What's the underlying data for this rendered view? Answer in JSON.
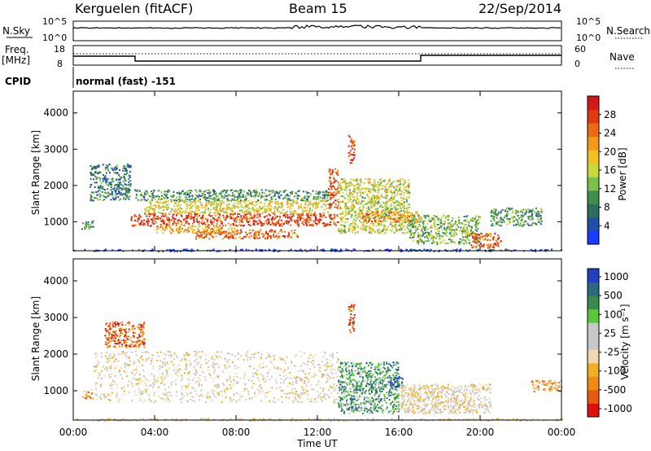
{
  "header": {
    "station": "Kerguelen (fitACF)",
    "beam": "Beam 15",
    "date": "22/Sep/2014"
  },
  "housekeeping": {
    "nsky_label": "N.Sky",
    "nsky_ticks": [
      "10^5",
      "10^0"
    ],
    "nsearch_label": "N.Search",
    "nsearch_ticks": [
      "10^5",
      "10^0"
    ],
    "freq_label_1": "Freq.",
    "freq_label_2": "[MHz]",
    "freq_ticks": [
      "18",
      "8"
    ],
    "nave_label": "Nave",
    "nave_ticks": [
      "60",
      "0"
    ],
    "cpid_label": "CPID",
    "cpid_value": "normal (fast) -151"
  },
  "colors": {
    "power_scale": [
      "#1a3cff",
      "#1f4fa8",
      "#2e6e5e",
      "#3f8f4a",
      "#7cc24a",
      "#c8d93a",
      "#f0c21e",
      "#f29a16",
      "#ee6a12",
      "#e23a10",
      "#d41818"
    ],
    "velocity_scale": [
      "#e01010",
      "#e85a10",
      "#f08a10",
      "#f2b020",
      "#f0d8b0",
      "#c8c8c8",
      "#c8c8c8",
      "#58c83a",
      "#3a8a50",
      "#2a6a80",
      "#2040c0"
    ]
  },
  "chart_data": [
    {
      "type": "heatmap",
      "name": "power",
      "ylabel": "Slant Range [km]",
      "ylim": [
        200,
        4600
      ],
      "yticks": [
        "1000",
        "2000",
        "3000",
        "4000"
      ],
      "xlim": [
        0,
        24
      ],
      "xticks": [
        "00:00",
        "04:00",
        "08:00",
        "12:00",
        "16:00",
        "20:00",
        "00:00"
      ],
      "colorbar": {
        "label": "Power [dB]",
        "range": [
          0,
          32
        ],
        "ticks": [
          "4",
          "8",
          "12",
          "16",
          "20",
          "24",
          "28"
        ]
      },
      "bands": [
        {
          "t0": 0.4,
          "t1": 1.0,
          "r0": 800,
          "r1": 1050,
          "level": 0.3
        },
        {
          "t0": 0.8,
          "t1": 2.8,
          "r0": 1600,
          "r1": 2600,
          "level": 0.25
        },
        {
          "t0": 2.8,
          "t1": 13.0,
          "r0": 900,
          "r1": 1250,
          "level": 0.85
        },
        {
          "t0": 3.5,
          "t1": 12.5,
          "r0": 1250,
          "r1": 1600,
          "level": 0.55
        },
        {
          "t0": 3.0,
          "t1": 12.5,
          "r0": 1600,
          "r1": 1900,
          "level": 0.3
        },
        {
          "t0": 6.0,
          "t1": 11.0,
          "r0": 550,
          "r1": 800,
          "level": 0.8
        },
        {
          "t0": 4.0,
          "t1": 8.0,
          "r0": 700,
          "r1": 900,
          "level": 0.65
        },
        {
          "t0": 12.5,
          "t1": 13.0,
          "r0": 1400,
          "r1": 2500,
          "level": 0.85
        },
        {
          "t0": 13.0,
          "t1": 16.5,
          "r0": 700,
          "r1": 2200,
          "level": 0.5
        },
        {
          "t0": 14.0,
          "t1": 17.0,
          "r0": 1000,
          "r1": 1300,
          "level": 0.7
        },
        {
          "t0": 16.5,
          "t1": 20.0,
          "r0": 400,
          "r1": 1200,
          "level": 0.4
        },
        {
          "t0": 19.5,
          "t1": 21.0,
          "r0": 300,
          "r1": 700,
          "level": 0.85
        },
        {
          "t0": 20.5,
          "t1": 23.0,
          "r0": 900,
          "r1": 1400,
          "level": 0.3
        },
        {
          "t0": 13.5,
          "t1": 13.8,
          "r0": 2600,
          "r1": 3400,
          "level": 0.85
        },
        {
          "t0": 0.0,
          "t1": 24.0,
          "r0": 200,
          "r1": 260,
          "level": 0.05
        }
      ]
    },
    {
      "type": "heatmap",
      "name": "velocity",
      "ylabel": "Slant Range [km]",
      "ylim": [
        200,
        4600
      ],
      "yticks": [
        "1000",
        "2000",
        "3000",
        "4000"
      ],
      "xlim": [
        0,
        24
      ],
      "xticks": [
        "00:00",
        "04:00",
        "08:00",
        "12:00",
        "16:00",
        "20:00",
        "00:00"
      ],
      "xlabel": "Time UT",
      "colorbar": {
        "label": "Velocity [m s⁻¹]",
        "ticks": [
          "1000",
          "500",
          "100",
          "25",
          "-25",
          "-100",
          "-500",
          "-1000"
        ]
      },
      "bands": [
        {
          "t0": 0.4,
          "t1": 1.0,
          "r0": 800,
          "r1": 1050,
          "level": 0.3
        },
        {
          "t0": 1.5,
          "t1": 3.5,
          "r0": 2200,
          "r1": 2900,
          "level": 0.15
        },
        {
          "t0": 1.0,
          "t1": 13.0,
          "r0": 700,
          "r1": 2100,
          "level": 0.45
        },
        {
          "t0": 13.0,
          "t1": 16.0,
          "r0": 400,
          "r1": 1800,
          "level": 0.75
        },
        {
          "t0": 15.5,
          "t1": 16.2,
          "r0": 1100,
          "r1": 1400,
          "level": 0.95
        },
        {
          "t0": 16.0,
          "t1": 20.5,
          "r0": 400,
          "r1": 1200,
          "level": 0.45
        },
        {
          "t0": 13.5,
          "t1": 13.8,
          "r0": 2600,
          "r1": 3400,
          "level": 0.1
        },
        {
          "t0": 22.5,
          "t1": 24.0,
          "r0": 1000,
          "r1": 1300,
          "level": 0.3
        },
        {
          "t0": 0.0,
          "t1": 24.0,
          "r0": 200,
          "r1": 260,
          "level": 0.45
        }
      ]
    }
  ]
}
